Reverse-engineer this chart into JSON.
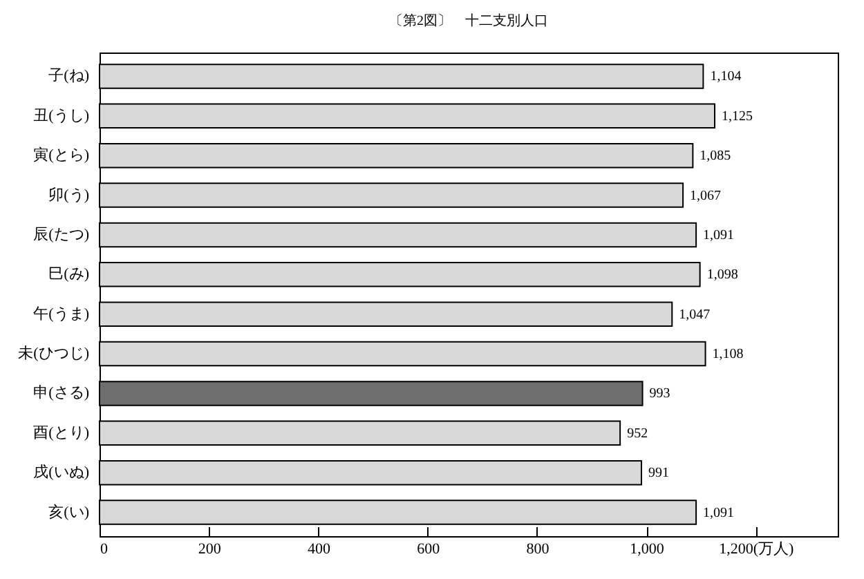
{
  "chart_data": {
    "type": "bar",
    "orientation": "horizontal",
    "title": "〔第2図〕　十二支別人口",
    "categories": [
      "子(ね)",
      "丑(うし)",
      "寅(とら)",
      "卯(う)",
      "辰(たつ)",
      "巳(み)",
      "午(うま)",
      "未(ひつじ)",
      "申(さる)",
      "酉(とり)",
      "戌(いぬ)",
      "亥(い)"
    ],
    "values": [
      1104,
      1125,
      1085,
      1067,
      1091,
      1098,
      1047,
      1108,
      993,
      952,
      991,
      1091
    ],
    "value_labels": [
      "1,104",
      "1,125",
      "1,085",
      "1,067",
      "1,091",
      "1,098",
      "1,047",
      "1,108",
      "993",
      "952",
      "991",
      "1,091"
    ],
    "colors": [
      "#d9d9d9",
      "#d9d9d9",
      "#d9d9d9",
      "#d9d9d9",
      "#d9d9d9",
      "#d9d9d9",
      "#d9d9d9",
      "#d9d9d9",
      "#6e6e6e",
      "#d9d9d9",
      "#d9d9d9",
      "#d9d9d9"
    ],
    "xlim": [
      0,
      1350
    ],
    "xticks": [
      0,
      200,
      400,
      600,
      800,
      {
        "value": 1000,
        "label": "1,000"
      },
      {
        "value": 1200,
        "label": "1,200(万人)"
      }
    ],
    "grid": false
  }
}
